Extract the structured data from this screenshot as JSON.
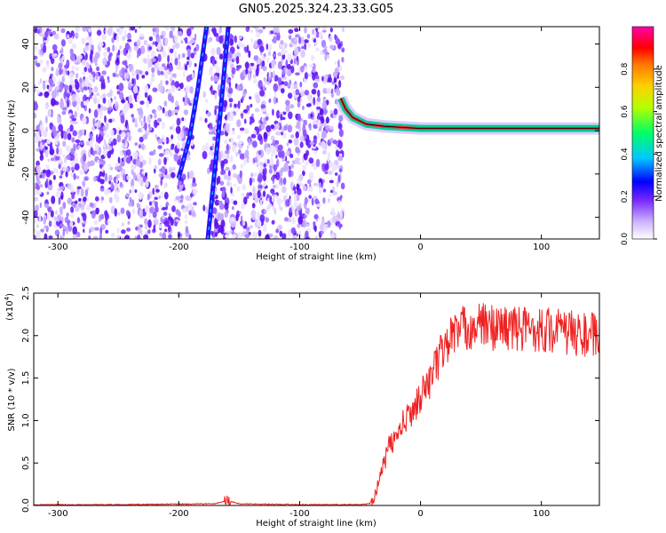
{
  "title": "GN05.2025.324.23.33.G05",
  "chart_data": [
    {
      "type": "heatmap",
      "name": "spectrogram",
      "xlabel": "Height of straight line (km)",
      "ylabel": "Frequency (Hz)",
      "xlim": [
        -320,
        148
      ],
      "ylim": [
        -50,
        48
      ],
      "xticks": [
        -300,
        -200,
        -100,
        0,
        100
      ],
      "yticks": [
        -40,
        -20,
        0,
        20,
        40
      ],
      "noise_region_x": [
        -320,
        -64
      ],
      "gap_region_x": [
        -186,
        -174
      ],
      "tracks": [
        {
          "name": "satellite-track-1",
          "points": [
            [
              -200,
              -22
            ],
            [
              -191,
              -3
            ],
            [
              -184,
              20
            ],
            [
              -177,
              48
            ]
          ]
        },
        {
          "name": "satellite-track-2",
          "points": [
            [
              -176,
              -50
            ],
            [
              -172,
              -28
            ],
            [
              -167,
              0
            ],
            [
              -162,
              30
            ],
            [
              -159,
              48
            ]
          ]
        },
        {
          "name": "main-signal",
          "points": [
            [
              -66,
              15
            ],
            [
              -62,
              10
            ],
            [
              -56,
              6
            ],
            [
              -45,
              3
            ],
            [
              -30,
              2
            ],
            [
              0,
              1
            ],
            [
              50,
              1
            ],
            [
              148,
              1
            ]
          ]
        }
      ],
      "colorbar": {
        "label": "Normalized spectral amplitude",
        "range": [
          0.0,
          1.0
        ],
        "ticks": [
          "0.0",
          "0.2",
          "0.4",
          "0.6",
          "0.8"
        ],
        "colors": [
          "#ffffff",
          "#cdb5ff",
          "#7a2aff",
          "#0000ff",
          "#00c8ff",
          "#00ff66",
          "#b6ff00",
          "#ffd000",
          "#ff7a00",
          "#ff0000",
          "#ff00aa"
        ]
      }
    },
    {
      "type": "line",
      "name": "snr",
      "xlabel": "Height of straight line (km)",
      "ylabel": "SNR (10 * v/v)",
      "scale_label": "(x10",
      "scale_exp": "4",
      "scale_close": ")",
      "xlim": [
        -320,
        148
      ],
      "ylim": [
        0,
        2.5
      ],
      "xticks": [
        -300,
        -200,
        -100,
        0,
        100
      ],
      "yticks": [
        "0.0",
        "0.5",
        "1.0",
        "1.5",
        "2.0",
        "2.5"
      ],
      "line_color": "#ee2222",
      "series": [
        {
          "name": "SNR",
          "x": [
            -320,
            -250,
            -170,
            -160,
            -150,
            -100,
            -50,
            -42,
            -38,
            -34,
            -30,
            -26,
            -20,
            -15,
            -10,
            -5,
            0,
            5,
            10,
            15,
            20,
            25,
            30,
            40,
            50,
            60,
            70,
            80,
            90,
            100,
            110,
            120,
            130,
            140,
            148
          ],
          "y": [
            0.01,
            0.01,
            0.02,
            0.06,
            0.02,
            0.01,
            0.01,
            0.02,
            0.12,
            0.3,
            0.5,
            0.7,
            0.8,
            0.95,
            1.05,
            1.15,
            1.3,
            1.4,
            1.55,
            1.72,
            1.88,
            1.98,
            2.06,
            2.1,
            2.12,
            2.1,
            2.1,
            2.08,
            2.08,
            2.08,
            2.06,
            2.04,
            2.02,
            2.0,
            2.0
          ]
        }
      ]
    }
  ]
}
